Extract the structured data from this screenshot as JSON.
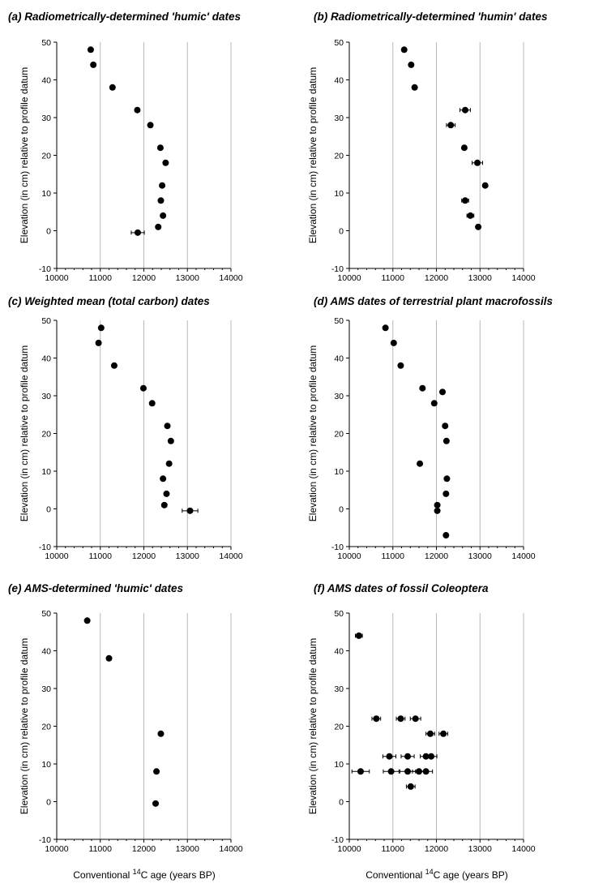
{
  "x_axis_label": {
    "prefix": "Conventional ",
    "superscript": "14",
    "suffix": "C age (years BP)"
  },
  "chart_data": [
    {
      "type": "scatter",
      "title": "(a) Radiometrically-determined 'humic' dates",
      "ylabel": "Elevation (in cm) relative to profile datum",
      "xlim": [
        10000,
        14000
      ],
      "ylim": [
        -10,
        50
      ],
      "x_ticks": [
        "10000",
        "11000",
        "12000",
        "13000",
        "14000"
      ],
      "y_ticks": [
        "-10",
        "0",
        "10",
        "20",
        "30",
        "40",
        "50"
      ],
      "grid": "vertical",
      "points": [
        {
          "x": 10780,
          "y": 48
        },
        {
          "x": 10840,
          "y": 44
        },
        {
          "x": 11280,
          "y": 38
        },
        {
          "x": 11850,
          "y": 32
        },
        {
          "x": 12150,
          "y": 28
        },
        {
          "x": 12380,
          "y": 22
        },
        {
          "x": 12500,
          "y": 18
        },
        {
          "x": 12420,
          "y": 12
        },
        {
          "x": 12390,
          "y": 8
        },
        {
          "x": 12440,
          "y": 4
        },
        {
          "x": 12330,
          "y": 1
        },
        {
          "x": 11860,
          "y": -0.5,
          "xerr": 150
        }
      ]
    },
    {
      "type": "scatter",
      "title": "(b) Radiometrically-determined 'humin' dates",
      "ylabel": "Elevation (in cm) relative to profile datum",
      "xlim": [
        10000,
        14000
      ],
      "ylim": [
        -10,
        50
      ],
      "x_ticks": [
        "10000",
        "11000",
        "12000",
        "13000",
        "14000"
      ],
      "y_ticks": [
        "-10",
        "0",
        "10",
        "20",
        "30",
        "40",
        "50"
      ],
      "grid": "vertical",
      "points": [
        {
          "x": 11260,
          "y": 48
        },
        {
          "x": 11420,
          "y": 44
        },
        {
          "x": 11500,
          "y": 38
        },
        {
          "x": 12660,
          "y": 32,
          "xerr": 120
        },
        {
          "x": 12330,
          "y": 28,
          "xerr": 100
        },
        {
          "x": 12640,
          "y": 22
        },
        {
          "x": 12940,
          "y": 18,
          "xerr": 120
        },
        {
          "x": 13120,
          "y": 12
        },
        {
          "x": 12660,
          "y": 8,
          "xerr": 80
        },
        {
          "x": 12780,
          "y": 4,
          "xerr": 80
        },
        {
          "x": 12960,
          "y": 1
        }
      ]
    },
    {
      "type": "scatter",
      "title": "(c) Weighted mean (total carbon) dates",
      "ylabel": "Elevation (in cm) relative to profile datum",
      "xlim": [
        10000,
        14000
      ],
      "ylim": [
        -10,
        50
      ],
      "x_ticks": [
        "10000",
        "11000",
        "12000",
        "13000",
        "14000"
      ],
      "y_ticks": [
        "-10",
        "0",
        "10",
        "20",
        "30",
        "40",
        "50"
      ],
      "grid": "vertical",
      "points": [
        {
          "x": 11020,
          "y": 48
        },
        {
          "x": 10960,
          "y": 44
        },
        {
          "x": 11320,
          "y": 38
        },
        {
          "x": 11990,
          "y": 32
        },
        {
          "x": 12190,
          "y": 28
        },
        {
          "x": 12540,
          "y": 22
        },
        {
          "x": 12620,
          "y": 18
        },
        {
          "x": 12580,
          "y": 12
        },
        {
          "x": 12440,
          "y": 8
        },
        {
          "x": 12520,
          "y": 4
        },
        {
          "x": 12470,
          "y": 1
        },
        {
          "x": 13060,
          "y": -0.5,
          "xerr": 180
        }
      ]
    },
    {
      "type": "scatter",
      "title": "(d) AMS dates of terrestrial plant macrofossils",
      "ylabel": "Elevation (in cm) relative to profile datum",
      "xlim": [
        10000,
        14000
      ],
      "ylim": [
        -10,
        50
      ],
      "x_ticks": [
        "10000",
        "11000",
        "12000",
        "13000",
        "14000"
      ],
      "y_ticks": [
        "-10",
        "0",
        "10",
        "20",
        "30",
        "40",
        "50"
      ],
      "grid": "vertical",
      "points": [
        {
          "x": 10830,
          "y": 48
        },
        {
          "x": 11020,
          "y": 44
        },
        {
          "x": 11180,
          "y": 38
        },
        {
          "x": 11680,
          "y": 32
        },
        {
          "x": 12140,
          "y": 31
        },
        {
          "x": 11950,
          "y": 28
        },
        {
          "x": 12200,
          "y": 22
        },
        {
          "x": 12230,
          "y": 18
        },
        {
          "x": 11620,
          "y": 12
        },
        {
          "x": 12240,
          "y": 8
        },
        {
          "x": 12220,
          "y": 4
        },
        {
          "x": 12020,
          "y": 1
        },
        {
          "x": 12020,
          "y": -0.5
        },
        {
          "x": 12220,
          "y": -7
        }
      ]
    },
    {
      "type": "scatter",
      "title": "(e) AMS-determined 'humic' dates",
      "ylabel": "Elevation (in cm) relative to profile datum",
      "xlim": [
        10000,
        14000
      ],
      "ylim": [
        -10,
        50
      ],
      "x_ticks": [
        "10000",
        "11000",
        "12000",
        "13000",
        "14000"
      ],
      "y_ticks": [
        "-10",
        "0",
        "10",
        "20",
        "30",
        "40",
        "50"
      ],
      "grid": "vertical",
      "points": [
        {
          "x": 10700,
          "y": 48
        },
        {
          "x": 11200,
          "y": 38
        },
        {
          "x": 12390,
          "y": 18
        },
        {
          "x": 12290,
          "y": 8
        },
        {
          "x": 12270,
          "y": -0.5
        }
      ]
    },
    {
      "type": "scatter",
      "title": "(f) AMS dates of fossil Coleoptera",
      "ylabel": "Elevation (in cm) relative to profile datum",
      "xlim": [
        10000,
        14000
      ],
      "ylim": [
        -10,
        50
      ],
      "x_ticks": [
        "10000",
        "11000",
        "12000",
        "13000",
        "14000"
      ],
      "y_ticks": [
        "-10",
        "0",
        "10",
        "20",
        "30",
        "40",
        "50"
      ],
      "grid": "vertical",
      "points": [
        {
          "x": 10220,
          "y": 44,
          "xerr": 80
        },
        {
          "x": 10620,
          "y": 22,
          "xerr": 100
        },
        {
          "x": 11180,
          "y": 22,
          "xerr": 100
        },
        {
          "x": 11520,
          "y": 22,
          "xerr": 120
        },
        {
          "x": 11860,
          "y": 18,
          "xerr": 100
        },
        {
          "x": 12160,
          "y": 18,
          "xerr": 100
        },
        {
          "x": 10920,
          "y": 12,
          "xerr": 150
        },
        {
          "x": 11340,
          "y": 12,
          "xerr": 150
        },
        {
          "x": 11760,
          "y": 12,
          "xerr": 130
        },
        {
          "x": 11880,
          "y": 12,
          "xerr": 130
        },
        {
          "x": 10260,
          "y": 8,
          "xerr": 200
        },
        {
          "x": 10960,
          "y": 8,
          "xerr": 180
        },
        {
          "x": 11340,
          "y": 8,
          "xerr": 180
        },
        {
          "x": 11600,
          "y": 8,
          "xerr": 150
        },
        {
          "x": 11760,
          "y": 8,
          "xerr": 150
        },
        {
          "x": 11410,
          "y": 4,
          "xerr": 100
        }
      ]
    }
  ]
}
